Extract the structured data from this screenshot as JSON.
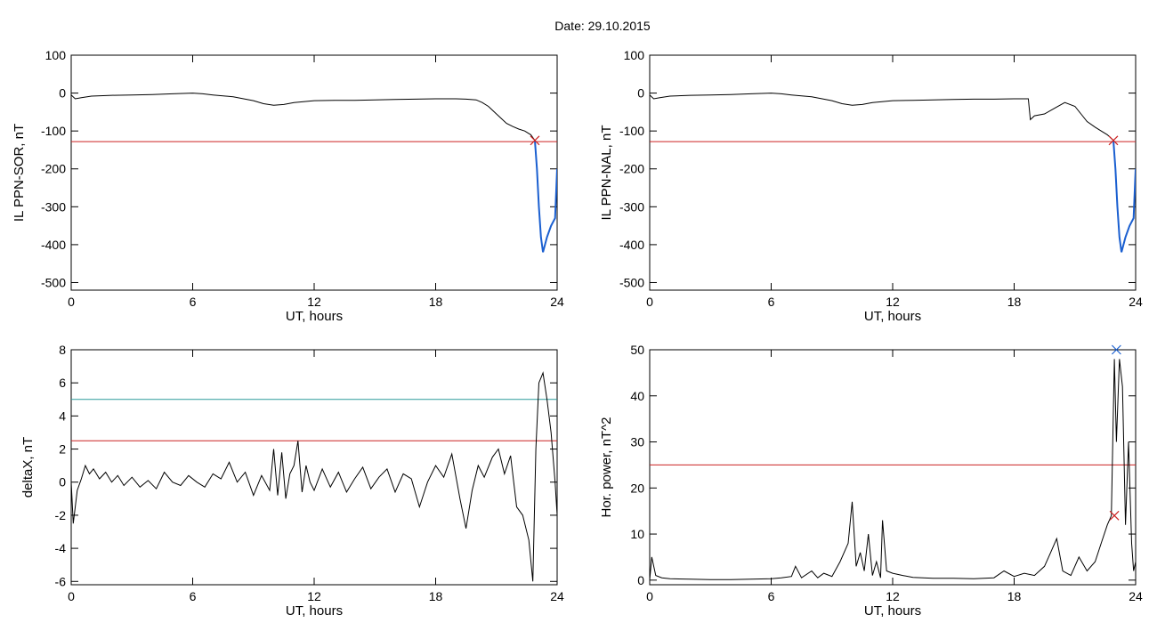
{
  "title": "Date:  29.10.2015",
  "chart_data": [
    {
      "type": "line",
      "xlabel": "UT, hours",
      "ylabel": "IL PPN-SOR, nT",
      "xlim": [
        0,
        24
      ],
      "ylim": [
        -520,
        100
      ],
      "xticks": [
        0,
        6,
        12,
        18,
        24
      ],
      "yticks": [
        100,
        0,
        -100,
        -200,
        -300,
        -400,
        -500
      ],
      "series": [
        {
          "color": "#000000",
          "x": [
            0,
            0.2,
            0.5,
            1,
            2,
            3,
            4,
            5,
            6,
            6.5,
            7,
            8,
            9,
            9.5,
            10,
            10.5,
            11,
            12,
            13,
            14,
            15,
            16,
            17,
            18,
            19,
            19.5,
            20,
            20.3,
            20.6,
            20.9,
            21.2,
            21.5,
            21.8,
            22.1,
            22.4,
            22.7,
            22.9
          ],
          "y": [
            -5,
            -15,
            -12,
            -8,
            -6,
            -5,
            -4,
            -2,
            0,
            -2,
            -5,
            -10,
            -20,
            -28,
            -32,
            -30,
            -25,
            -20,
            -19,
            -19,
            -18,
            -17,
            -16,
            -15,
            -15,
            -16,
            -18,
            -25,
            -35,
            -50,
            -65,
            -80,
            -88,
            -95,
            -100,
            -110,
            -125
          ]
        },
        {
          "color": "#1a5fd0",
          "x": [
            22.9,
            23.0,
            23.1,
            23.2,
            23.3,
            23.5,
            23.7,
            23.9,
            24
          ],
          "y": [
            -125,
            -200,
            -300,
            -380,
            -420,
            -380,
            -350,
            -330,
            -200
          ]
        }
      ],
      "hlines": [
        {
          "y": -128,
          "color": "#cc2222"
        }
      ],
      "markers": [
        {
          "x": 22.9,
          "y": -125,
          "symbol": "x",
          "color": "#cc2222"
        }
      ]
    },
    {
      "type": "line",
      "xlabel": "UT, hours",
      "ylabel": "IL PPN-NAL, nT",
      "xlim": [
        0,
        24
      ],
      "ylim": [
        -520,
        100
      ],
      "xticks": [
        0,
        6,
        12,
        18,
        24
      ],
      "yticks": [
        100,
        0,
        -100,
        -200,
        -300,
        -400,
        -500
      ],
      "series": [
        {
          "color": "#000000",
          "x": [
            0,
            0.2,
            0.5,
            1,
            2,
            3,
            4,
            5,
            6,
            6.5,
            7,
            8,
            9,
            9.5,
            10,
            10.5,
            11,
            12,
            13,
            14,
            15,
            16,
            17,
            18,
            18.7,
            18.8,
            19,
            19.5,
            20,
            20.5,
            21,
            21.3,
            21.6,
            22,
            22.3,
            22.6,
            22.9
          ],
          "y": [
            -5,
            -15,
            -12,
            -8,
            -6,
            -5,
            -4,
            -2,
            0,
            -2,
            -5,
            -10,
            -20,
            -28,
            -32,
            -30,
            -25,
            -20,
            -19,
            -18,
            -17,
            -16,
            -16,
            -15,
            -15,
            -70,
            -60,
            -55,
            -40,
            -25,
            -35,
            -55,
            -75,
            -90,
            -100,
            -110,
            -125
          ]
        },
        {
          "color": "#1a5fd0",
          "x": [
            22.9,
            23.0,
            23.1,
            23.2,
            23.3,
            23.5,
            23.7,
            23.9,
            24
          ],
          "y": [
            -125,
            -200,
            -300,
            -380,
            -420,
            -380,
            -350,
            -330,
            -200
          ]
        }
      ],
      "hlines": [
        {
          "y": -128,
          "color": "#cc2222"
        }
      ],
      "markers": [
        {
          "x": 22.9,
          "y": -125,
          "symbol": "x",
          "color": "#cc2222"
        }
      ]
    },
    {
      "type": "line",
      "xlabel": "UT, hours",
      "ylabel": "deltaX, nT",
      "xlim": [
        0,
        24
      ],
      "ylim": [
        -6.2,
        8
      ],
      "xticks": [
        0,
        6,
        12,
        18,
        24
      ],
      "yticks": [
        8,
        6,
        4,
        2,
        0,
        -2,
        -4,
        -6
      ],
      "series": [
        {
          "color": "#000000",
          "x": [
            0,
            0.1,
            0.3,
            0.5,
            0.7,
            0.9,
            1.1,
            1.4,
            1.7,
            2.0,
            2.3,
            2.6,
            3.0,
            3.4,
            3.8,
            4.2,
            4.6,
            5.0,
            5.4,
            5.8,
            6.2,
            6.6,
            7.0,
            7.4,
            7.8,
            8.2,
            8.6,
            9.0,
            9.4,
            9.8,
            10.0,
            10.2,
            10.4,
            10.6,
            10.8,
            11.0,
            11.2,
            11.4,
            11.6,
            11.8,
            12.0,
            12.4,
            12.8,
            13.2,
            13.6,
            14.0,
            14.4,
            14.8,
            15.2,
            15.6,
            16.0,
            16.4,
            16.8,
            17.2,
            17.6,
            18.0,
            18.4,
            18.8,
            19.2,
            19.5,
            19.8,
            20.1,
            20.4,
            20.8,
            21.1,
            21.4,
            21.7,
            22.0,
            22.3,
            22.6,
            22.8,
            22.95,
            23.1,
            23.3,
            23.5,
            23.7,
            23.9,
            24
          ],
          "y": [
            0,
            -2.5,
            -0.5,
            0.2,
            1.0,
            0.5,
            0.8,
            0.2,
            0.6,
            0.0,
            0.4,
            -0.2,
            0.3,
            -0.3,
            0.1,
            -0.4,
            0.6,
            0.0,
            -0.2,
            0.4,
            0.0,
            -0.3,
            0.5,
            0.2,
            1.2,
            0.0,
            0.6,
            -0.8,
            0.4,
            -0.5,
            2.0,
            -0.8,
            1.8,
            -1.0,
            0.5,
            1.0,
            2.5,
            -0.6,
            1.0,
            0.0,
            -0.5,
            0.8,
            -0.3,
            0.6,
            -0.6,
            0.2,
            0.9,
            -0.4,
            0.3,
            0.8,
            -0.6,
            0.5,
            0.2,
            -1.5,
            0.0,
            1.0,
            0.3,
            1.7,
            -1.0,
            -2.8,
            -0.5,
            1.0,
            0.3,
            1.5,
            2.0,
            0.5,
            1.6,
            -1.5,
            -2.0,
            -3.5,
            -6.0,
            2.0,
            6.0,
            6.6,
            5.0,
            3.0,
            0.0,
            -2.0
          ]
        }
      ],
      "hlines": [
        {
          "y": 5,
          "color": "#2a9a9a"
        },
        {
          "y": 2.5,
          "color": "#cc2222"
        }
      ],
      "markers": []
    },
    {
      "type": "line",
      "xlabel": "UT, hours",
      "ylabel": "Hor. power, nT^2",
      "xlim": [
        0,
        24
      ],
      "ylim": [
        -1,
        50
      ],
      "xticks": [
        0,
        6,
        12,
        18,
        24
      ],
      "yticks": [
        50,
        40,
        30,
        20,
        10,
        0
      ],
      "series": [
        {
          "color": "#000000",
          "x": [
            0,
            0.1,
            0.3,
            0.6,
            1,
            2,
            3,
            4,
            5,
            6,
            6.5,
            7.0,
            7.2,
            7.5,
            8.0,
            8.3,
            8.6,
            9.0,
            9.4,
            9.8,
            10.0,
            10.2,
            10.4,
            10.6,
            10.8,
            11.0,
            11.2,
            11.4,
            11.5,
            11.7,
            12.0,
            12.5,
            13.0,
            14,
            15,
            16,
            17,
            17.5,
            18,
            18.5,
            19.0,
            19.5,
            19.8,
            20.1,
            20.4,
            20.8,
            21.2,
            21.6,
            22.0,
            22.3,
            22.6,
            22.8,
            22.95,
            23.05,
            23.2,
            23.35,
            23.5,
            23.65,
            23.8,
            23.9,
            24
          ],
          "y": [
            0,
            5,
            1,
            0.5,
            0.3,
            0.2,
            0.1,
            0.1,
            0.2,
            0.3,
            0.5,
            0.8,
            3,
            0.5,
            2,
            0.5,
            1.5,
            0.8,
            4,
            8,
            17,
            3,
            6,
            2,
            10,
            1,
            4,
            0.5,
            13,
            2,
            1.5,
            1,
            0.6,
            0.4,
            0.4,
            0.3,
            0.5,
            2,
            0.8,
            1.5,
            1,
            3,
            6,
            9,
            2,
            1,
            5,
            2,
            4,
            8,
            12,
            14,
            48,
            30,
            48,
            42,
            12,
            30,
            8,
            2,
            4
          ]
        }
      ],
      "hlines": [
        {
          "y": 25,
          "color": "#cc2222"
        }
      ],
      "markers": [
        {
          "x": 22.95,
          "y": 14,
          "symbol": "x",
          "color": "#cc2222"
        },
        {
          "x": 23.05,
          "y": 50,
          "symbol": "x",
          "color": "#1a5fd0"
        }
      ]
    }
  ]
}
